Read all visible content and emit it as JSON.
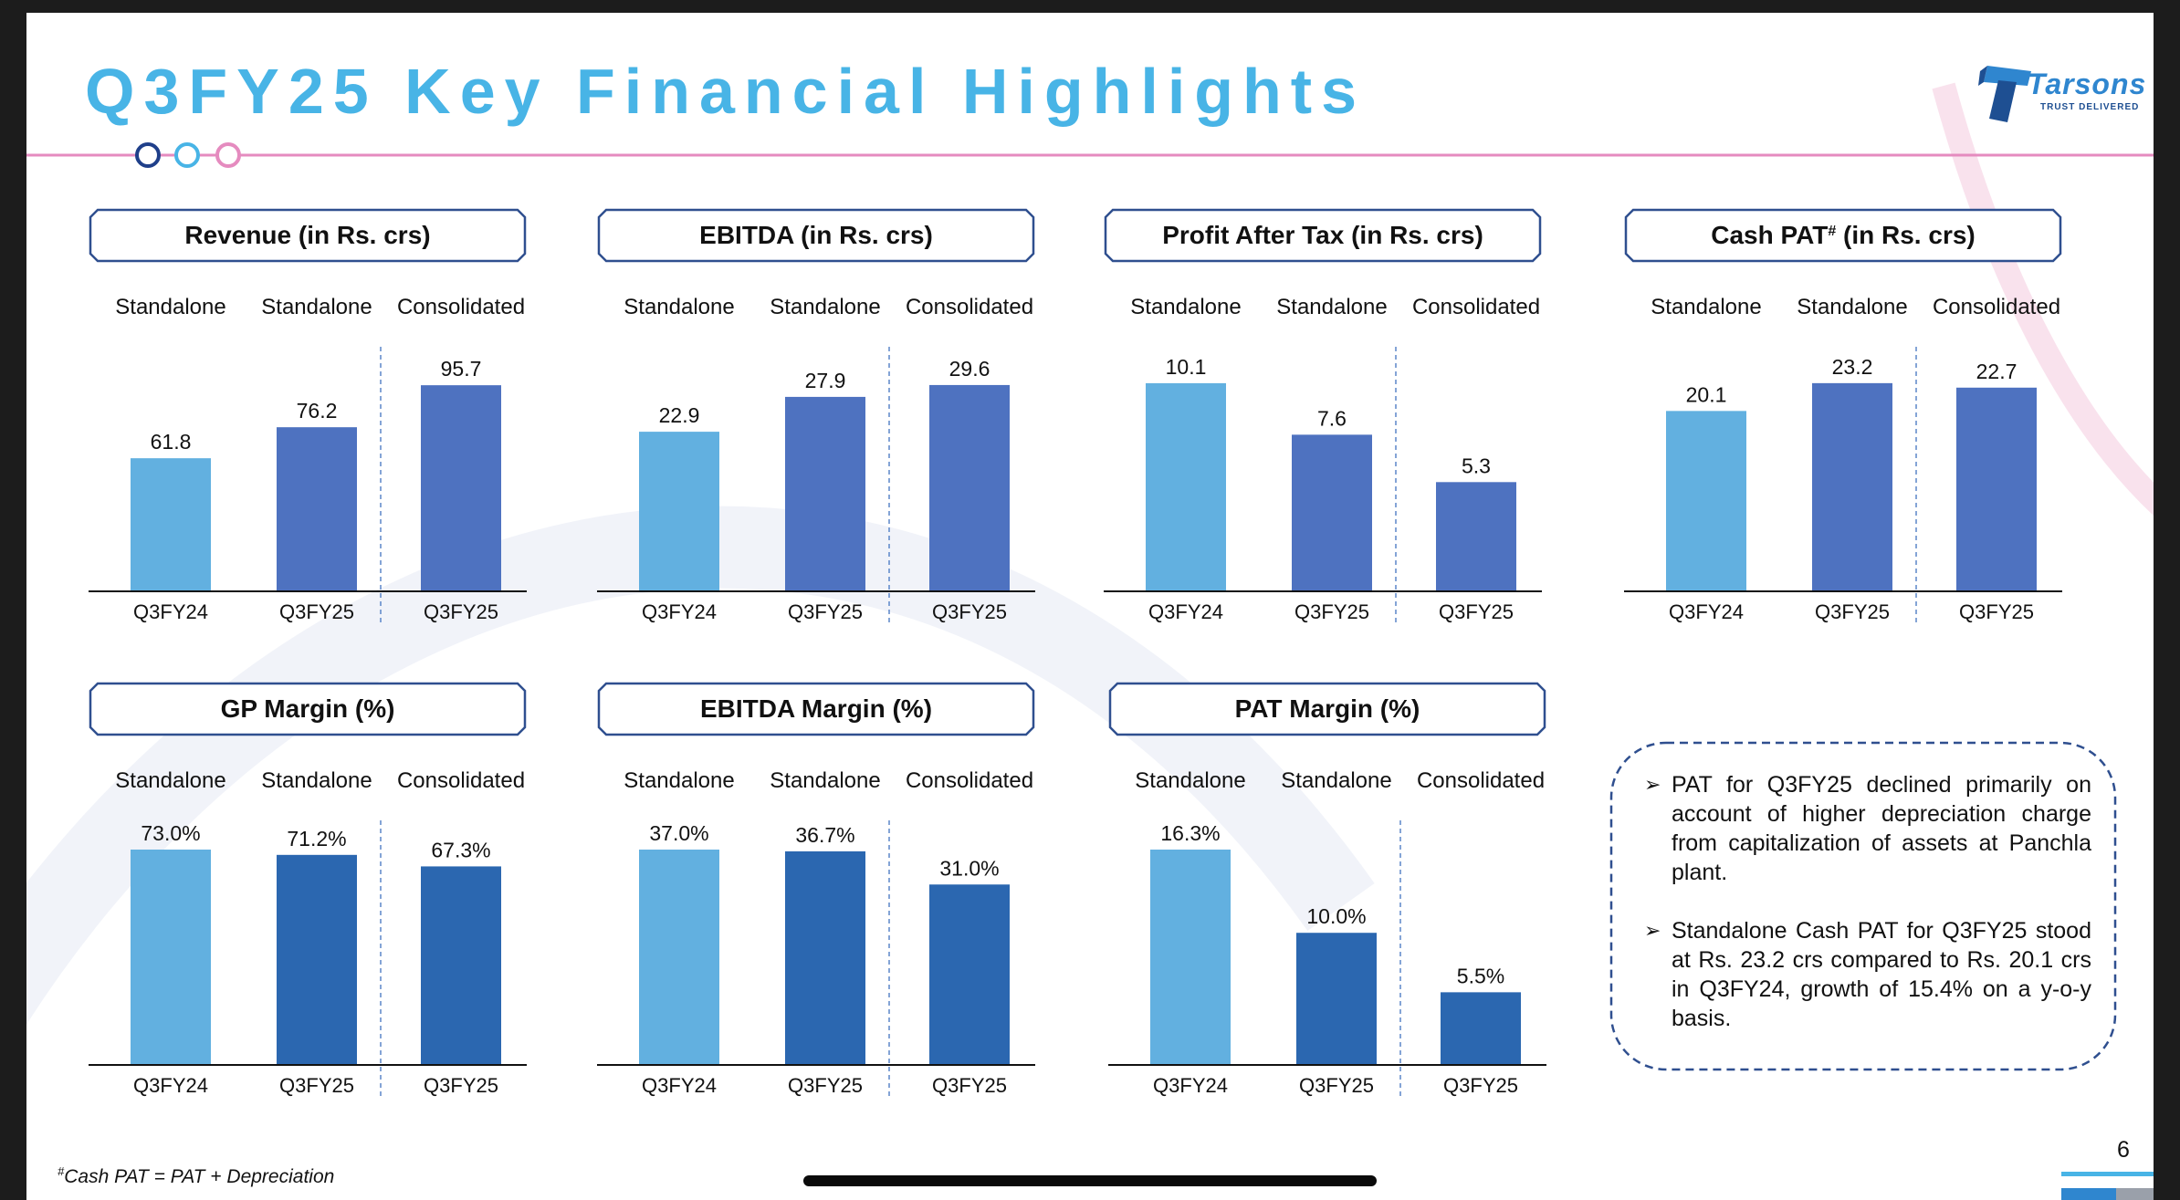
{
  "slide": {
    "title": "Q3FY25 Key Financial Highlights",
    "page_number": "6",
    "footnote_mark": "#",
    "footnote_text": "Cash PAT = PAT + Depreciation"
  },
  "logo": {
    "wordmark": "Tarsons",
    "tagline": "TRUST DELIVERED",
    "icon": "tarsons-logo-icon"
  },
  "colors": {
    "title": "#48b4e6",
    "bar_light": "#62b0e0",
    "bar_mid": "#4e72c0",
    "bar_dark": "#2b67b0",
    "header_border": "#2f4f8f",
    "rule_pink": "#e58bbf",
    "separator": "#5b86c9"
  },
  "chart_data": [
    {
      "id": "revenue",
      "type": "bar",
      "title": "Revenue (in Rs. crs)",
      "title_sup": "",
      "entities": [
        "Standalone",
        "Standalone",
        "Consolidated"
      ],
      "categories": [
        "Q3FY24",
        "Q3FY25",
        "Q3FY25"
      ],
      "values": [
        61.8,
        76.2,
        95.7
      ],
      "labels": [
        "61.8",
        "76.2",
        "95.7"
      ],
      "colors": [
        "#62b0e0",
        "#4e72c0",
        "#4e72c0"
      ],
      "ylim": [
        0,
        100
      ]
    },
    {
      "id": "ebitda",
      "type": "bar",
      "title": "EBITDA (in Rs. crs)",
      "title_sup": "",
      "entities": [
        "Standalone",
        "Standalone",
        "Consolidated"
      ],
      "categories": [
        "Q3FY24",
        "Q3FY25",
        "Q3FY25"
      ],
      "values": [
        22.9,
        27.9,
        29.6
      ],
      "labels": [
        "22.9",
        "27.9",
        "29.6"
      ],
      "colors": [
        "#62b0e0",
        "#4e72c0",
        "#4e72c0"
      ],
      "ylim": [
        0,
        30.9
      ]
    },
    {
      "id": "pat",
      "type": "bar",
      "title": "Profit After Tax (in Rs. crs)",
      "title_sup": "",
      "entities": [
        "Standalone",
        "Standalone",
        "Consolidated"
      ],
      "categories": [
        "Q3FY24",
        "Q3FY25",
        "Q3FY25"
      ],
      "values": [
        10.1,
        7.6,
        5.3
      ],
      "labels": [
        "10.1",
        "7.6",
        "5.3"
      ],
      "colors": [
        "#62b0e0",
        "#4e72c0",
        "#4e72c0"
      ],
      "ylim": [
        0,
        10.45
      ]
    },
    {
      "id": "cash-pat",
      "type": "bar",
      "title": "Cash PAT",
      "title_sup": "#",
      "title_suffix": " (in Rs. crs)",
      "entities": [
        "Standalone",
        "Standalone",
        "Consolidated"
      ],
      "categories": [
        "Q3FY24",
        "Q3FY25",
        "Q3FY25"
      ],
      "values": [
        20.1,
        23.2,
        22.7
      ],
      "labels": [
        "20.1",
        "23.2",
        "22.7"
      ],
      "colors": [
        "#62b0e0",
        "#4e72c0",
        "#4e72c0"
      ],
      "ylim": [
        0,
        24.0
      ]
    },
    {
      "id": "gp-margin",
      "type": "bar",
      "title": "GP Margin (%)",
      "title_sup": "",
      "entities": [
        "Standalone",
        "Standalone",
        "Consolidated"
      ],
      "categories": [
        "Q3FY24",
        "Q3FY25",
        "Q3FY25"
      ],
      "values": [
        73.0,
        71.2,
        67.3
      ],
      "labels": [
        "73.0%",
        "71.2%",
        "67.3%"
      ],
      "colors": [
        "#62b0e0",
        "#2b67b0",
        "#2b67b0"
      ],
      "ylim": [
        0,
        73.0
      ]
    },
    {
      "id": "ebitda-margin",
      "type": "bar",
      "title": "EBITDA Margin (%)",
      "title_sup": "",
      "entities": [
        "Standalone",
        "Standalone",
        "Consolidated"
      ],
      "categories": [
        "Q3FY24",
        "Q3FY25",
        "Q3FY25"
      ],
      "values": [
        37.0,
        36.7,
        31.0
      ],
      "labels": [
        "37.0%",
        "36.7%",
        "31.0%"
      ],
      "colors": [
        "#62b0e0",
        "#2b67b0",
        "#2b67b0"
      ],
      "ylim": [
        0,
        37.0
      ]
    },
    {
      "id": "pat-margin",
      "type": "bar",
      "title": "PAT Margin (%)",
      "title_sup": "",
      "entities": [
        "Standalone",
        "Standalone",
        "Consolidated"
      ],
      "categories": [
        "Q3FY24",
        "Q3FY25",
        "Q3FY25"
      ],
      "values": [
        16.3,
        10.0,
        5.5
      ],
      "labels": [
        "16.3%",
        "10.0%",
        "5.5%"
      ],
      "colors": [
        "#62b0e0",
        "#2b67b0",
        "#2b67b0"
      ],
      "ylim": [
        0,
        16.3
      ]
    }
  ],
  "notes": [
    "PAT for Q3FY25 declined primarily on account of higher depreciation charge from capitalization of assets at Panchla plant.",
    "Standalone Cash PAT for Q3FY25 stood at Rs. 23.2 crs compared to Rs. 20.1 crs in Q3FY24, growth of 15.4% on a y-o-y basis."
  ],
  "notes_bullet": "➢"
}
